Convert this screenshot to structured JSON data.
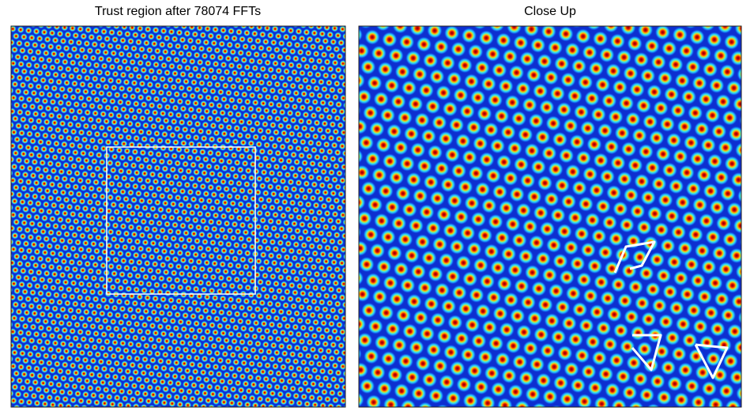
{
  "panels": [
    {
      "title": "Trust region after 78074 FFTs"
    },
    {
      "title": "Close Up"
    }
  ]
}
